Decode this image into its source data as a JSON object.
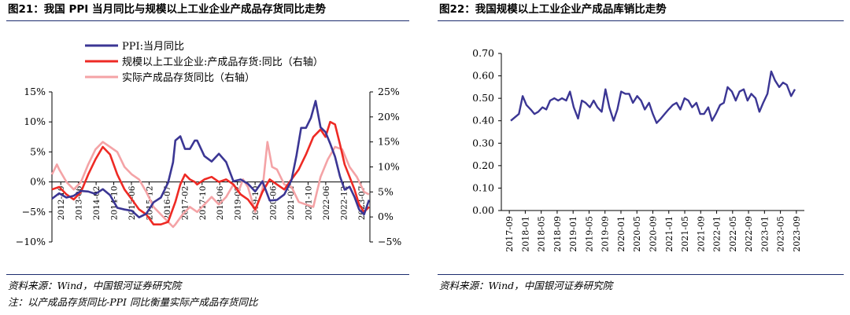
{
  "left": {
    "title": "图21：我国 PPI 当月同比与规模以上工业企业产成品存货同比走势",
    "source": "资料来源：Wind，中国银河证券研究院",
    "note": "注：以产成品存货同比-PPI 同比衡量实际产成品存货同比",
    "colors": {
      "ppi": "#3b3694",
      "inv": "#ee2a24",
      "real": "#f4a3a6"
    },
    "legend": [
      "PPI:当月同比",
      "规模以上工业企业:产成品存货:同比（右轴）",
      "实际产成品存货同比（右轴）"
    ],
    "yticks_left": [
      "15%",
      "10%",
      "5%",
      "0%",
      "−5%",
      "−10%"
    ],
    "yticks_right": [
      "25%",
      "20%",
      "15%",
      "10%",
      "5%",
      "0%",
      "−5%"
    ],
    "xticks": [
      "2012-10",
      "2013-06",
      "2014-02",
      "2014-10",
      "2015-06",
      "2015-12",
      "2016-07",
      "2017-02",
      "2017-10",
      "2018-06",
      "2019-02",
      "2019-10",
      "2020-06",
      "2021-02",
      "2021-10",
      "2022-06",
      "2022-12",
      "2023-07"
    ]
  },
  "right": {
    "title": "图22：我国规模以上工业企业产成品库销比走势",
    "source": "资料来源：Wind，中国银河证券研究院",
    "color": "#3b3694",
    "yticks": [
      "0.70",
      "0.60",
      "0.50",
      "0.40",
      "0.30",
      "0.20",
      "0.10",
      "0.00"
    ],
    "xticks": [
      "2017-09",
      "2018-01",
      "2018-05",
      "2018-09",
      "2019-01",
      "2019-05",
      "2019-09",
      "2020-01",
      "2020-05",
      "2020-09",
      "2021-01",
      "2021-05",
      "2021-09",
      "2022-01",
      "2022-05",
      "2022-09",
      "2023-01",
      "2023-05",
      "2023-09"
    ]
  },
  "chart_data": [
    {
      "type": "line",
      "title": "图21：我国 PPI 当月同比与规模以上工业企业产成品存货同比走势",
      "ylim_left": [
        -10,
        15
      ],
      "ylim_right": [
        -5,
        25
      ],
      "series": [
        {
          "name": "PPI:当月同比",
          "axis": "left",
          "x": [
            2012.75,
            2013.0,
            2013.25,
            2013.5,
            2013.75,
            2014.0,
            2014.25,
            2014.5,
            2014.75,
            2015.0,
            2015.25,
            2015.5,
            2015.75,
            2016.0,
            2016.25,
            2016.5,
            2016.75,
            2016.92,
            2017.0,
            2017.17,
            2017.33,
            2017.5,
            2017.67,
            2017.75,
            2018.0,
            2018.25,
            2018.5,
            2018.75,
            2019.0,
            2019.25,
            2019.5,
            2019.75,
            2020.0,
            2020.25,
            2020.5,
            2020.75,
            2021.0,
            2021.17,
            2021.33,
            2021.5,
            2021.67,
            2021.83,
            2022.0,
            2022.17,
            2022.33,
            2022.5,
            2022.67,
            2022.83,
            2023.0,
            2023.17,
            2023.33,
            2023.5,
            2023.67
          ],
          "values": [
            -2.8,
            -1.9,
            -2.6,
            -2.3,
            -1.5,
            -1.6,
            -2.0,
            -1.2,
            -2.2,
            -4.3,
            -4.6,
            -4.8,
            -5.9,
            -5.3,
            -3.4,
            -2.6,
            -0.1,
            3.3,
            6.9,
            7.6,
            5.5,
            5.5,
            6.9,
            6.9,
            4.3,
            3.4,
            4.7,
            3.3,
            0.1,
            0.4,
            -0.3,
            -1.6,
            0.1,
            -3.1,
            -3.0,
            -2.1,
            0.3,
            4.4,
            9.0,
            9.0,
            10.7,
            13.5,
            9.1,
            8.3,
            6.4,
            4.2,
            0.9,
            -1.3,
            -0.8,
            -2.5,
            -4.6,
            -5.4,
            -3.0
          ]
        },
        {
          "name": "规模以上工业企业:产成品存货:同比（右轴）",
          "axis": "right",
          "x": [
            2012.75,
            2013.0,
            2013.25,
            2013.5,
            2013.75,
            2014.0,
            2014.25,
            2014.5,
            2014.75,
            2015.0,
            2015.25,
            2015.5,
            2015.75,
            2016.0,
            2016.25,
            2016.5,
            2016.75,
            2017.0,
            2017.17,
            2017.33,
            2017.5,
            2017.67,
            2017.75,
            2018.0,
            2018.25,
            2018.5,
            2018.75,
            2019.0,
            2019.25,
            2019.5,
            2019.75,
            2020.0,
            2020.25,
            2020.5,
            2020.75,
            2021.0,
            2021.25,
            2021.5,
            2021.75,
            2022.0,
            2022.17,
            2022.33,
            2022.5,
            2022.67,
            2022.83,
            2023.0,
            2023.17,
            2023.33,
            2023.5,
            2023.67
          ],
          "values": [
            5.5,
            6.0,
            4.5,
            3.5,
            5.0,
            8.5,
            11.5,
            14.0,
            12.5,
            8.5,
            5.5,
            3.5,
            1.5,
            0.5,
            -1.5,
            -1.5,
            -1.0,
            3.0,
            6.5,
            8.5,
            7.5,
            7.0,
            6.5,
            7.5,
            8.0,
            7.0,
            7.5,
            6.5,
            4.5,
            3.5,
            1.5,
            5.0,
            7.5,
            6.5,
            5.5,
            7.5,
            9.5,
            12.5,
            16.0,
            17.5,
            16.0,
            19.0,
            18.5,
            14.5,
            10.5,
            8.0,
            5.5,
            2.5,
            1.0,
            2.0
          ]
        },
        {
          "name": "实际产成品存货同比（右轴）",
          "axis": "right",
          "x": [
            2012.75,
            2012.92,
            2013.0,
            2013.25,
            2013.5,
            2013.75,
            2014.0,
            2014.25,
            2014.5,
            2014.75,
            2015.0,
            2015.25,
            2015.5,
            2015.75,
            2016.0,
            2016.25,
            2016.5,
            2016.75,
            2016.92,
            2017.0,
            2017.25,
            2017.5,
            2017.75,
            2018.0,
            2018.25,
            2018.5,
            2018.75,
            2019.0,
            2019.17,
            2019.33,
            2019.5,
            2019.75,
            2020.0,
            2020.17,
            2020.33,
            2020.5,
            2020.75,
            2021.0,
            2021.25,
            2021.5,
            2021.75,
            2022.0,
            2022.25,
            2022.5,
            2022.75,
            2023.0,
            2023.25,
            2023.5,
            2023.67
          ],
          "values": [
            8.5,
            10.5,
            9.5,
            7.0,
            5.5,
            7.0,
            10.5,
            13.5,
            15.0,
            14.0,
            13.0,
            10.0,
            8.5,
            7.5,
            5.0,
            2.0,
            0.5,
            -1.0,
            -2.0,
            -1.5,
            0.5,
            2.0,
            1.0,
            2.5,
            4.0,
            2.5,
            4.0,
            6.5,
            5.0,
            7.5,
            6.0,
            1.0,
            5.5,
            15.0,
            10.0,
            9.5,
            6.5,
            6.0,
            3.0,
            2.5,
            2.0,
            8.0,
            11.5,
            14.0,
            13.5,
            10.0,
            8.0,
            5.0,
            4.5
          ]
        }
      ]
    },
    {
      "type": "line",
      "title": "图22：我国规模以上工业企业产成品库销比走势",
      "ylim": [
        0,
        0.7
      ],
      "x": [
        2017.75,
        2017.92,
        2018.0,
        2018.08,
        2018.17,
        2018.25,
        2018.33,
        2018.42,
        2018.5,
        2018.58,
        2018.67,
        2018.75,
        2018.83,
        2018.92,
        2019.0,
        2019.08,
        2019.17,
        2019.25,
        2019.33,
        2019.42,
        2019.5,
        2019.58,
        2019.67,
        2019.75,
        2019.83,
        2019.92,
        2020.0,
        2020.08,
        2020.17,
        2020.25,
        2020.33,
        2020.42,
        2020.5,
        2020.58,
        2020.67,
        2020.75,
        2020.83,
        2020.92,
        2021.0,
        2021.08,
        2021.17,
        2021.25,
        2021.33,
        2021.42,
        2021.5,
        2021.58,
        2021.67,
        2021.75,
        2021.83,
        2021.92,
        2022.0,
        2022.08,
        2022.17,
        2022.25,
        2022.33,
        2022.42,
        2022.5,
        2022.58,
        2022.67,
        2022.75,
        2022.83,
        2022.92,
        2023.0,
        2023.08,
        2023.17,
        2023.25,
        2023.33,
        2023.42,
        2023.5,
        2023.58,
        2023.67,
        2023.75
      ],
      "values": [
        0.4,
        0.43,
        0.51,
        0.47,
        0.45,
        0.43,
        0.44,
        0.46,
        0.45,
        0.49,
        0.5,
        0.49,
        0.5,
        0.49,
        0.53,
        0.46,
        0.41,
        0.49,
        0.48,
        0.46,
        0.49,
        0.46,
        0.44,
        0.54,
        0.46,
        0.4,
        0.45,
        0.53,
        0.52,
        0.52,
        0.48,
        0.51,
        0.49,
        0.45,
        0.48,
        0.43,
        0.39,
        0.41,
        0.43,
        0.45,
        0.47,
        0.48,
        0.45,
        0.5,
        0.49,
        0.46,
        0.48,
        0.43,
        0.43,
        0.46,
        0.4,
        0.43,
        0.47,
        0.48,
        0.55,
        0.53,
        0.49,
        0.53,
        0.54,
        0.49,
        0.52,
        0.5,
        0.44,
        0.48,
        0.52,
        0.62,
        0.58,
        0.55,
        0.57,
        0.56,
        0.51,
        0.54
      ]
    }
  ]
}
